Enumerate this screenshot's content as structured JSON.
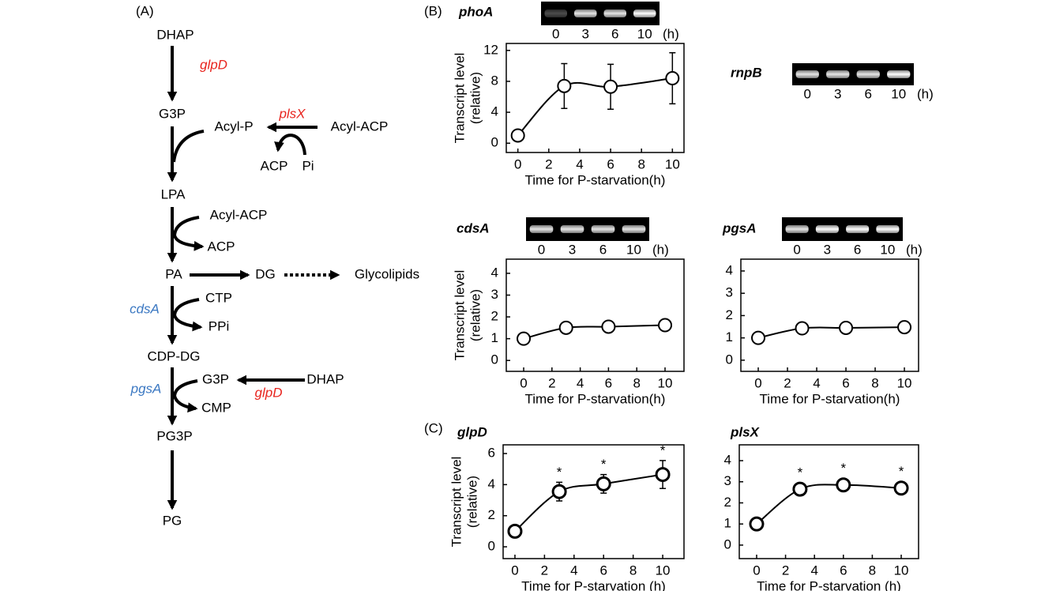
{
  "panels": [
    "(A)",
    "(B)",
    "(C)"
  ],
  "pathway": {
    "main": [
      "DHAP",
      "G3P",
      "LPA",
      "PA",
      "CDP-DG",
      "PG3P",
      "PG"
    ],
    "enzymes": {
      "glpD_1": "glpD",
      "plsX": "plsX",
      "cdsA": "cdsA",
      "pgsA": "pgsA",
      "glpD_2": "glpD"
    },
    "side": {
      "acyl_p": "Acyl-P",
      "acyl_acp_1": "Acyl-ACP",
      "acp_1": "ACP",
      "pi": "Pi",
      "acyl_acp_2": "Acyl-ACP",
      "acp_2": "ACP",
      "dg": "DG",
      "glycolipids": "Glycolipids",
      "ctp": "CTP",
      "ppi": "PPi",
      "g3p": "G3P",
      "dhap": "DHAP",
      "cmp": "CMP"
    }
  },
  "gels": [
    {
      "name": "phoA",
      "lanes": [
        "0",
        "3",
        "6",
        "10"
      ],
      "unit": "(h)"
    },
    {
      "name": "rnpB",
      "lanes": [
        "0",
        "3",
        "6",
        "10"
      ],
      "unit": "(h)"
    },
    {
      "name": "cdsA",
      "lanes": [
        "0",
        "3",
        "6",
        "10"
      ],
      "unit": "(h)"
    },
    {
      "name": "pgsA",
      "lanes": [
        "0",
        "3",
        "6",
        "10"
      ],
      "unit": "(h)"
    }
  ],
  "chart_data": [
    {
      "type": "line",
      "title": "phoA",
      "ylabel": [
        "Transcript level",
        "(relative)"
      ],
      "xlabel": "Time for P-starvation(h)",
      "x": [
        0,
        3,
        6,
        10
      ],
      "values": [
        1,
        7.4,
        7.3,
        8.4
      ],
      "errors": [
        0,
        2.9,
        2.9,
        3.3
      ],
      "xlim": [
        -0.75,
        10.75
      ],
      "ylim": [
        -1.2,
        12.9
      ],
      "xticks": [
        0,
        2,
        4,
        6,
        8,
        10
      ],
      "yticks": [
        0,
        4,
        8,
        12
      ]
    },
    {
      "type": "line",
      "title": "cdsA",
      "ylabel": [
        "Transcript level",
        "(relative)"
      ],
      "xlabel": "Time for P-starvation(h)",
      "x": [
        0,
        3,
        6,
        10
      ],
      "values": [
        1,
        1.5,
        1.55,
        1.62
      ],
      "xlim": [
        -1.23,
        11.34
      ],
      "ylim": [
        -0.5,
        4.65
      ],
      "xticks": [
        0,
        2,
        4,
        6,
        8,
        10
      ],
      "yticks": [
        0,
        1,
        2,
        3,
        4
      ]
    },
    {
      "type": "line",
      "title": "pgsA",
      "xlabel": "Time for P-starvation(h)",
      "x": [
        0,
        3,
        6,
        10
      ],
      "values": [
        1,
        1.43,
        1.45,
        1.48
      ],
      "xlim": [
        -1.19,
        10.97
      ],
      "ylim": [
        -0.5,
        4.53
      ],
      "xticks": [
        0,
        2,
        4,
        6,
        8,
        10
      ],
      "yticks": [
        0,
        1,
        2,
        3,
        4
      ]
    },
    {
      "type": "line",
      "title": "glpD",
      "ylabel": [
        "Transcript level",
        "(relative)"
      ],
      "xlabel": "Time for P-starvation (h)",
      "x": [
        0,
        3,
        6,
        10
      ],
      "values": [
        1,
        3.55,
        4.05,
        4.65
      ],
      "errors": [
        0,
        0.6,
        0.6,
        0.9
      ],
      "marks": [
        null,
        "*",
        "*",
        "*"
      ],
      "xlim": [
        -0.8,
        11.44
      ],
      "ylim": [
        -0.76,
        6.56
      ],
      "xticks": [
        0,
        2,
        4,
        6,
        8,
        10
      ],
      "yticks": [
        0,
        2,
        4,
        6
      ]
    },
    {
      "type": "line",
      "title": "plsX",
      "xlabel": "Time for P-starvation (h)",
      "x": [
        0,
        3,
        6,
        10
      ],
      "values": [
        1,
        2.65,
        2.85,
        2.7
      ],
      "errors": [
        0,
        0.3,
        0.3,
        0.3
      ],
      "marks": [
        null,
        "*",
        "*",
        "*"
      ],
      "xlim": [
        -1.2,
        11.2
      ],
      "ylim": [
        -0.64,
        4.75
      ],
      "xticks": [
        0,
        2,
        4,
        6,
        8,
        10
      ],
      "yticks": [
        0,
        1,
        2,
        3,
        4
      ]
    }
  ]
}
